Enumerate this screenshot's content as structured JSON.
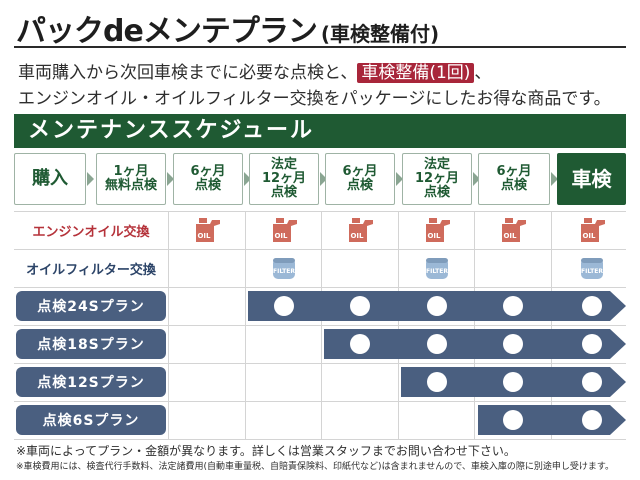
{
  "header": {
    "title": "パックdeメンテプラン",
    "subtitle": "(車検整備付)"
  },
  "intro": {
    "line1_before": "車両購入から次回車検までに必要な点検と、",
    "line1_highlight": "車検整備(1回)",
    "line1_after": "、",
    "line2": "エンジンオイル・オイルフィルター交換をパッケージにしたお得な商品です。"
  },
  "schedule": {
    "title": "メンテナンススケジュール",
    "steps": [
      {
        "line1": "購入",
        "line2": "",
        "line3": ""
      },
      {
        "line1": "1ヶ月",
        "line2": "無料点検",
        "line3": ""
      },
      {
        "line1": "6ヶ月",
        "line2": "点検",
        "line3": ""
      },
      {
        "line1": "法定",
        "line2": "12ヶ月",
        "line3": "点検"
      },
      {
        "line1": "6ヶ月",
        "line2": "点検",
        "line3": ""
      },
      {
        "line1": "法定",
        "line2": "12ヶ月",
        "line3": "点検"
      },
      {
        "line1": "6ヶ月",
        "line2": "点検",
        "line3": ""
      },
      {
        "line1": "車検",
        "line2": "",
        "line3": ""
      }
    ]
  },
  "rows": {
    "oil_label": "エンジンオイル交換",
    "oil_icon_text": "OIL",
    "filter_label": "オイルフィルター交換",
    "filter_icon_text": "FILTER",
    "plans": [
      {
        "name": "点検24Sプラン"
      },
      {
        "name": "点検18Sプラン"
      },
      {
        "name": "点検12Sプラン"
      },
      {
        "name": "点検6Sプラン"
      }
    ]
  },
  "notes": {
    "note1": "※車両によってプラン・金額が異なります。詳しくは営業スタッフまでお問い合わせ下さい。",
    "note2": "※車検費用には、検査代行手数料、法定諸費用(自動車重量税、自賠責保険料、印紙代など)は含まれませんので、車検入庫の際に別途申し受けます。"
  },
  "colors": {
    "accent_green": "#1f5a33",
    "highlight_red": "#a8263a",
    "plan_navy": "#4a5f80",
    "oil_can": "#cf6b5c",
    "filter_blue": "#9bb8d6"
  },
  "icons": [
    "oil-can-icon",
    "oil-filter-icon",
    "check-circle-icon",
    "arrow-right-icon"
  ]
}
